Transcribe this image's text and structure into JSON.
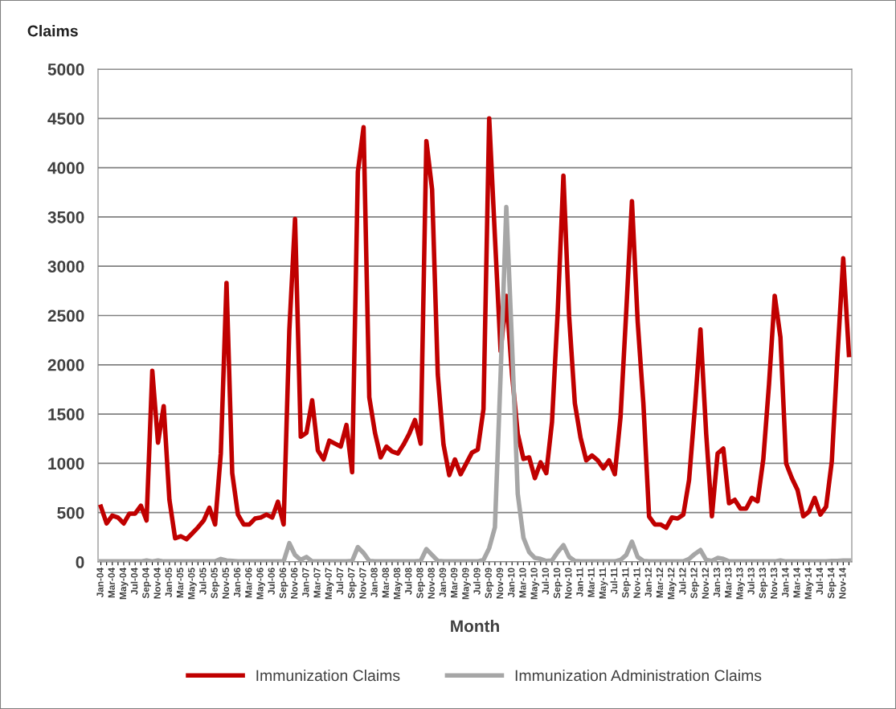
{
  "chart_data": {
    "type": "line",
    "ylabel": "Claims",
    "xlabel": "Month",
    "categories": [
      "Jan-04",
      null,
      "Mar-04",
      null,
      "May-04",
      null,
      "Jul-04",
      null,
      "Sep-04",
      null,
      "Nov-04",
      null,
      "Jan-05",
      null,
      "Mar-05",
      null,
      "May-05",
      null,
      "Jul-05",
      null,
      "Sep-05",
      null,
      "Nov-05",
      null,
      "Jan-06",
      null,
      "Mar-06",
      null,
      "May-06",
      null,
      "Jul-06",
      null,
      "Sep-06",
      null,
      "Nov-06",
      null,
      "Jan-07",
      null,
      "Mar-07",
      null,
      "May-07",
      null,
      "Jul-07",
      null,
      "Sep-07",
      null,
      "Nov-07",
      null,
      "Jan-08",
      null,
      "Mar-08",
      null,
      "May-08",
      null,
      "Jul-08",
      null,
      "Sep-08",
      null,
      "Nov-08",
      null,
      "Jan-09",
      null,
      "Mar-09",
      null,
      "May-09",
      null,
      "Jul-09",
      null,
      "Sep-09",
      null,
      "Nov-09",
      null,
      "Jan-10",
      null,
      "Mar-10",
      null,
      "May-10",
      null,
      "Jul-10",
      null,
      "Sep-10",
      null,
      "Nov-10",
      null,
      "Jan-11",
      null,
      "Mar-11",
      null,
      "May-11",
      null,
      "Jul-11",
      null,
      "Sep-11",
      null,
      "Nov-11",
      null,
      "Jan-12",
      null,
      "Mar-12",
      null,
      "May-12",
      null,
      "Jul-12",
      null,
      "Sep-12",
      null,
      "Nov-12",
      null,
      "Jan-13",
      null,
      "Mar-13",
      null,
      "May-13",
      null,
      "Jul-13",
      null,
      "Sep-13",
      null,
      "Nov-13",
      null,
      "Jan-14",
      null,
      "Mar-14",
      null,
      "May-14",
      null,
      "Jul-14",
      null,
      "Sep-14",
      null,
      "Nov-14",
      null
    ],
    "series": [
      {
        "name": "Immunization Claims",
        "color": "#c00000",
        "values": [
          560,
          390,
          470,
          450,
          390,
          490,
          490,
          570,
          420,
          1940,
          1210,
          1580,
          630,
          240,
          260,
          230,
          290,
          350,
          420,
          550,
          380,
          1100,
          2830,
          900,
          480,
          380,
          380,
          440,
          450,
          480,
          450,
          610,
          380,
          2350,
          3480,
          1270,
          1310,
          1640,
          1130,
          1040,
          1230,
          1200,
          1170,
          1390,
          910,
          3960,
          4410,
          1670,
          1310,
          1060,
          1170,
          1120,
          1100,
          1190,
          1300,
          1440,
          1200,
          4270,
          3780,
          1900,
          1190,
          880,
          1040,
          890,
          1000,
          1110,
          1140,
          1550,
          4500,
          3300,
          2140,
          2700,
          1900,
          1300,
          1045,
          1060,
          850,
          1010,
          900,
          1420,
          2540,
          3920,
          2490,
          1610,
          1260,
          1030,
          1080,
          1030,
          950,
          1030,
          890,
          1470,
          2540,
          3660,
          2440,
          1610,
          460,
          380,
          380,
          345,
          450,
          440,
          480,
          830,
          1550,
          2360,
          1300,
          463,
          1100,
          1150,
          595,
          630,
          540,
          540,
          650,
          615,
          1040,
          1800,
          2700,
          2280,
          1000,
          850,
          730,
          463,
          510,
          650,
          480,
          560,
          1020,
          2100,
          3080,
          2100
        ]
      },
      {
        "name": "Immunization Administration Claims",
        "color": "#a6a6a6",
        "values": [
          5,
          5,
          5,
          5,
          5,
          5,
          5,
          5,
          15,
          5,
          15,
          5,
          5,
          5,
          5,
          5,
          5,
          5,
          5,
          5,
          5,
          30,
          15,
          10,
          5,
          5,
          5,
          5,
          5,
          5,
          5,
          5,
          5,
          190,
          70,
          20,
          50,
          5,
          5,
          5,
          5,
          5,
          5,
          5,
          10,
          150,
          90,
          10,
          5,
          5,
          5,
          5,
          5,
          5,
          5,
          5,
          10,
          130,
          70,
          10,
          5,
          5,
          5,
          5,
          5,
          5,
          5,
          20,
          140,
          350,
          1900,
          3600,
          2200,
          690,
          245,
          100,
          40,
          30,
          10,
          15,
          100,
          170,
          50,
          10,
          5,
          5,
          5,
          5,
          5,
          5,
          5,
          20,
          70,
          205,
          50,
          10,
          5,
          5,
          5,
          5,
          5,
          5,
          5,
          30,
          80,
          120,
          20,
          10,
          40,
          30,
          5,
          5,
          5,
          5,
          5,
          5,
          5,
          5,
          5,
          15,
          5,
          5,
          5,
          5,
          5,
          5,
          5,
          5,
          10,
          10,
          15,
          15
        ]
      }
    ],
    "ylim": [
      0,
      5000
    ],
    "yticks": [
      0,
      500,
      1000,
      1500,
      2000,
      2500,
      3000,
      3500,
      4000,
      4500,
      5000
    ],
    "grid": "y",
    "legend": "bottom",
    "marker": "none",
    "line_style": "solid"
  }
}
